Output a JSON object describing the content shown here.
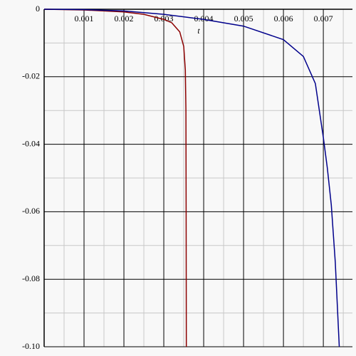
{
  "chart_data": {
    "type": "line",
    "x_label": "t",
    "series": [
      {
        "name": "red",
        "color": "#8b0000",
        "x": [
          0,
          0.001,
          0.002,
          0.0025,
          0.003,
          0.0032,
          0.0034,
          0.0035,
          0.00354,
          0.003555,
          0.00356,
          0.003565
        ],
        "values": [
          0,
          -0.0002,
          -0.0008,
          -0.0015,
          -0.003,
          -0.004,
          -0.0067,
          -0.011,
          -0.018,
          -0.03,
          -0.06,
          -0.1
        ]
      },
      {
        "name": "blue",
        "color": "#00008b",
        "x": [
          0,
          0.001,
          0.002,
          0.003,
          0.004,
          0.005,
          0.006,
          0.0065,
          0.0068,
          0.007,
          0.0071,
          0.0072,
          0.0073,
          0.0074
        ],
        "values": [
          0,
          -0.0001,
          -0.0005,
          -0.0015,
          -0.003,
          -0.005,
          -0.009,
          -0.014,
          -0.022,
          -0.038,
          -0.047,
          -0.058,
          -0.075,
          -0.1
        ]
      }
    ],
    "xlim": [
      0,
      0.00773
    ],
    "ylim": [
      -0.1,
      0
    ],
    "xticks": [
      0.001,
      0.002,
      0.003,
      0.004,
      0.005,
      0.006,
      0.007
    ],
    "yticks": [
      0,
      -0.02,
      -0.04,
      -0.06,
      -0.08,
      {
        "value": -0.1,
        "label": "-0.10"
      }
    ],
    "xminorticks": [
      0.0005,
      0.0015,
      0.0025,
      0.0035,
      0.0045,
      0.0055,
      0.0065,
      0.0075
    ],
    "yminorticks": [
      -0.01,
      -0.03,
      -0.05,
      -0.07,
      -0.09
    ],
    "grid": true
  }
}
